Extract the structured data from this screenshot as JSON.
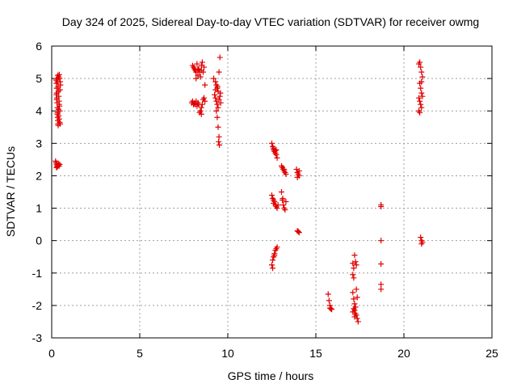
{
  "chart_data": {
    "type": "scatter",
    "title": "Day 324 of 2025, Sidereal Day-to-day VTEC variation (SDTVAR) for receiver owmg",
    "xlabel": "GPS time / hours",
    "ylabel": "SDTVAR / TECUs",
    "xlim": [
      0,
      25
    ],
    "ylim": [
      -3,
      6
    ],
    "xticks": [
      0,
      5,
      10,
      15,
      20,
      25
    ],
    "yticks": [
      -3,
      -2,
      -1,
      0,
      1,
      2,
      3,
      4,
      5,
      6
    ],
    "grid": true,
    "marker": "+",
    "color": "#e00000",
    "series": [
      {
        "name": "SDTVAR",
        "points": [
          [
            0.25,
            4.95
          ],
          [
            0.27,
            4.85
          ],
          [
            0.28,
            4.7
          ],
          [
            0.29,
            4.55
          ],
          [
            0.3,
            4.4
          ],
          [
            0.31,
            4.25
          ],
          [
            0.32,
            4.1
          ],
          [
            0.33,
            3.95
          ],
          [
            0.34,
            3.8
          ],
          [
            0.35,
            3.7
          ],
          [
            0.36,
            3.6
          ],
          [
            0.37,
            3.55
          ],
          [
            0.3,
            5.0
          ],
          [
            0.33,
            4.9
          ],
          [
            0.36,
            4.75
          ],
          [
            0.38,
            4.6
          ],
          [
            0.4,
            4.45
          ],
          [
            0.42,
            4.3
          ],
          [
            0.44,
            4.15
          ],
          [
            0.46,
            4.0
          ],
          [
            0.4,
            3.85
          ],
          [
            0.42,
            3.75
          ],
          [
            0.45,
            3.65
          ],
          [
            0.48,
            3.6
          ],
          [
            0.35,
            5.1
          ],
          [
            0.4,
            5.05
          ],
          [
            0.45,
            5.0
          ],
          [
            0.48,
            4.9
          ],
          [
            0.5,
            4.8
          ],
          [
            0.42,
            4.2
          ],
          [
            0.38,
            4.05
          ],
          [
            0.32,
            3.9
          ],
          [
            0.28,
            4.35
          ],
          [
            0.26,
            4.5
          ],
          [
            0.47,
            4.65
          ],
          [
            0.43,
            5.12
          ],
          [
            0.22,
            2.45
          ],
          [
            0.25,
            2.4
          ],
          [
            0.28,
            2.35
          ],
          [
            0.3,
            2.3
          ],
          [
            0.33,
            2.28
          ],
          [
            0.36,
            2.32
          ],
          [
            0.38,
            2.38
          ],
          [
            0.42,
            2.3
          ],
          [
            0.45,
            2.35
          ],
          [
            0.27,
            2.25
          ],
          [
            8.0,
            5.4
          ],
          [
            8.05,
            5.35
          ],
          [
            8.1,
            5.3
          ],
          [
            8.15,
            5.25
          ],
          [
            8.2,
            5.2
          ],
          [
            8.25,
            5.45
          ],
          [
            8.3,
            5.1
          ],
          [
            8.35,
            5.3
          ],
          [
            8.4,
            5.2
          ],
          [
            8.45,
            5.05
          ],
          [
            8.5,
            5.25
          ],
          [
            8.55,
            5.5
          ],
          [
            8.6,
            5.2
          ],
          [
            8.65,
            5.35
          ],
          [
            8.7,
            4.8
          ],
          [
            8.2,
            5.0
          ],
          [
            8.3,
            5.28
          ],
          [
            8.5,
            5.4
          ],
          [
            7.95,
            4.25
          ],
          [
            8.0,
            4.3
          ],
          [
            8.05,
            4.2
          ],
          [
            8.1,
            4.25
          ],
          [
            8.15,
            4.2
          ],
          [
            8.2,
            4.3
          ],
          [
            8.25,
            4.15
          ],
          [
            8.3,
            4.25
          ],
          [
            8.35,
            4.2
          ],
          [
            8.4,
            3.95
          ],
          [
            8.45,
            4.0
          ],
          [
            8.5,
            4.1
          ],
          [
            8.55,
            4.2
          ],
          [
            8.6,
            4.35
          ],
          [
            8.65,
            4.4
          ],
          [
            8.7,
            4.3
          ],
          [
            8.5,
            3.9
          ],
          [
            9.2,
            5.0
          ],
          [
            9.3,
            4.9
          ],
          [
            9.35,
            4.8
          ],
          [
            9.4,
            4.7
          ],
          [
            9.45,
            4.6
          ],
          [
            9.5,
            5.2
          ],
          [
            9.55,
            5.65
          ],
          [
            9.25,
            4.5
          ],
          [
            9.3,
            4.4
          ],
          [
            9.35,
            4.3
          ],
          [
            9.4,
            4.2
          ],
          [
            9.45,
            4.1
          ],
          [
            9.5,
            4.35
          ],
          [
            9.55,
            4.45
          ],
          [
            9.6,
            4.25
          ],
          [
            9.35,
            4.0
          ],
          [
            9.4,
            3.8
          ],
          [
            9.45,
            3.5
          ],
          [
            9.5,
            3.2
          ],
          [
            9.48,
            3.05
          ],
          [
            9.52,
            2.95
          ],
          [
            9.3,
            4.65
          ],
          [
            9.42,
            4.75
          ],
          [
            9.58,
            4.55
          ],
          [
            12.5,
            3.0
          ],
          [
            12.55,
            2.9
          ],
          [
            12.6,
            2.8
          ],
          [
            12.65,
            2.75
          ],
          [
            12.7,
            2.7
          ],
          [
            12.75,
            2.65
          ],
          [
            12.8,
            2.55
          ],
          [
            12.6,
            2.85
          ],
          [
            12.7,
            2.78
          ],
          [
            12.75,
            2.8
          ],
          [
            12.5,
            1.4
          ],
          [
            12.55,
            1.3
          ],
          [
            12.6,
            1.25
          ],
          [
            12.65,
            1.2
          ],
          [
            12.7,
            1.1
          ],
          [
            12.75,
            1.05
          ],
          [
            12.8,
            1.0
          ],
          [
            12.85,
            1.1
          ],
          [
            12.6,
            1.15
          ],
          [
            12.5,
            -0.75
          ],
          [
            12.55,
            -0.6
          ],
          [
            12.6,
            -0.5
          ],
          [
            12.65,
            -0.4
          ],
          [
            12.7,
            -0.3
          ],
          [
            12.75,
            -0.25
          ],
          [
            12.8,
            -0.2
          ],
          [
            12.55,
            -0.85
          ],
          [
            12.65,
            -0.45
          ],
          [
            13.05,
            2.3
          ],
          [
            13.1,
            2.25
          ],
          [
            13.15,
            2.2
          ],
          [
            13.2,
            2.15
          ],
          [
            13.25,
            2.1
          ],
          [
            13.3,
            2.05
          ],
          [
            13.2,
            2.2
          ],
          [
            13.05,
            1.5
          ],
          [
            13.1,
            1.25
          ],
          [
            13.15,
            1.1
          ],
          [
            13.2,
            1.0
          ],
          [
            13.25,
            0.95
          ],
          [
            13.3,
            1.2
          ],
          [
            13.12,
            1.3
          ],
          [
            13.9,
            2.2
          ],
          [
            13.95,
            2.1
          ],
          [
            14.0,
            2.05
          ],
          [
            14.05,
            2.0
          ],
          [
            13.95,
            1.95
          ],
          [
            14.05,
            2.15
          ],
          [
            13.95,
            0.3
          ],
          [
            14.0,
            0.28
          ],
          [
            14.05,
            0.25
          ],
          [
            15.7,
            -1.65
          ],
          [
            15.75,
            -1.85
          ],
          [
            15.8,
            -2.0
          ],
          [
            15.85,
            -2.1
          ],
          [
            15.9,
            -2.12
          ],
          [
            15.8,
            -2.08
          ],
          [
            17.1,
            -0.7
          ],
          [
            17.2,
            -0.45
          ],
          [
            17.25,
            -0.65
          ],
          [
            17.15,
            -0.85
          ],
          [
            17.1,
            -1.05
          ],
          [
            17.15,
            -1.15
          ],
          [
            17.3,
            -0.75
          ],
          [
            17.1,
            -1.6
          ],
          [
            17.15,
            -1.8
          ],
          [
            17.2,
            -1.95
          ],
          [
            17.25,
            -2.05
          ],
          [
            17.3,
            -1.5
          ],
          [
            17.35,
            -1.75
          ],
          [
            17.15,
            -2.1
          ],
          [
            17.2,
            -2.15
          ],
          [
            17.25,
            -2.25
          ],
          [
            17.3,
            -2.3
          ],
          [
            17.35,
            -2.4
          ],
          [
            17.4,
            -2.5
          ],
          [
            17.1,
            -2.2
          ],
          [
            17.2,
            -2.35
          ],
          [
            18.7,
            1.1
          ],
          [
            18.7,
            1.05
          ],
          [
            18.7,
            0.0
          ],
          [
            18.7,
            -0.72
          ],
          [
            18.7,
            -1.35
          ],
          [
            18.7,
            -1.5
          ],
          [
            20.85,
            5.45
          ],
          [
            20.9,
            5.5
          ],
          [
            20.95,
            5.35
          ],
          [
            21.0,
            5.2
          ],
          [
            21.05,
            5.05
          ],
          [
            20.9,
            4.85
          ],
          [
            20.95,
            4.7
          ],
          [
            21.0,
            4.55
          ],
          [
            20.85,
            4.4
          ],
          [
            20.9,
            4.3
          ],
          [
            20.95,
            4.2
          ],
          [
            21.0,
            4.1
          ],
          [
            20.85,
            4.0
          ],
          [
            20.9,
            3.95
          ],
          [
            21.05,
            4.45
          ],
          [
            21.0,
            4.9
          ],
          [
            20.95,
            0.1
          ],
          [
            21.0,
            0.0
          ],
          [
            21.05,
            -0.05
          ],
          [
            21.0,
            -0.1
          ]
        ]
      }
    ]
  }
}
